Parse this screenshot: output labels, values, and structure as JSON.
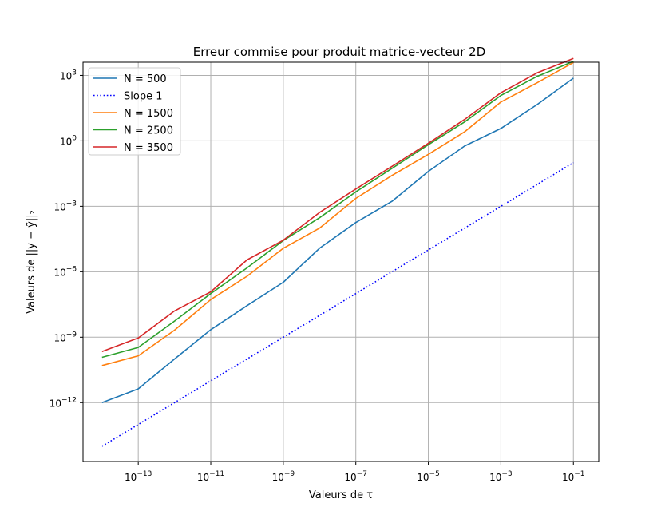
{
  "chart_data": {
    "type": "line",
    "title": "Erreur commise pour produit matrice-vecteur 2D",
    "xlabel": "Valeurs de τ",
    "ylabel": "Valeurs de ||y − ỹ||₂",
    "xscale": "log",
    "yscale": "log",
    "xlim": [
      3e-15,
      0.5
    ],
    "ylim": [
      2e-15,
      4000
    ],
    "grid": true,
    "legend_position": "top-left",
    "x_ticks": [
      {
        "base": "10",
        "exp": "−13"
      },
      {
        "base": "10",
        "exp": "−11"
      },
      {
        "base": "10",
        "exp": "−9"
      },
      {
        "base": "10",
        "exp": "−7"
      },
      {
        "base": "10",
        "exp": "−5"
      },
      {
        "base": "10",
        "exp": "−3"
      },
      {
        "base": "10",
        "exp": "−1"
      }
    ],
    "y_ticks": [
      {
        "base": "10",
        "exp": "3"
      },
      {
        "base": "10",
        "exp": "0"
      },
      {
        "base": "10",
        "exp": "−3"
      },
      {
        "base": "10",
        "exp": "−6"
      },
      {
        "base": "10",
        "exp": "−9"
      },
      {
        "base": "10",
        "exp": "−12"
      }
    ],
    "x": [
      1e-14,
      1e-13,
      1e-12,
      1e-11,
      1e-10,
      1e-09,
      1e-08,
      1e-07,
      1e-06,
      1e-05,
      0.0001,
      0.001,
      0.01,
      0.1
    ],
    "series": [
      {
        "name": "N = 500",
        "color": "#1f77b4",
        "style": "solid",
        "values": [
          1e-12,
          4.3e-12,
          1e-10,
          2.2e-09,
          2.8e-08,
          3.3e-07,
          1.2e-05,
          0.00018,
          0.0017,
          0.04,
          0.58,
          3.7,
          46.0,
          750.0
        ]
      },
      {
        "name": "Slope 1",
        "color": "#0000ff",
        "style": "dotted",
        "values": [
          1e-14,
          1e-13,
          1e-12,
          1e-11,
          1e-10,
          1e-09,
          1e-08,
          1e-07,
          1e-06,
          1e-05,
          0.0001,
          0.001,
          0.01,
          0.1
        ]
      },
      {
        "name": "N = 1500",
        "color": "#ff7f0e",
        "style": "solid",
        "values": [
          5e-11,
          1.4e-10,
          2.1e-09,
          5.3e-08,
          6.2e-07,
          1.2e-05,
          0.0001,
          0.0023,
          0.026,
          0.24,
          2.6,
          60.0,
          460.0,
          3900.0
        ]
      },
      {
        "name": "N = 2500",
        "color": "#2ca02c",
        "style": "solid",
        "values": [
          1.2e-10,
          3.4e-10,
          5.5e-09,
          1e-07,
          1.5e-06,
          2.7e-05,
          0.0003,
          0.0046,
          0.055,
          0.67,
          7.4,
          120.0,
          900.0,
          4400.0
        ]
      },
      {
        "name": "N = 3500",
        "color": "#d62728",
        "style": "solid",
        "values": [
          2.2e-10,
          9.2e-10,
          1.6e-08,
          1.2e-07,
          3.5e-06,
          2.8e-05,
          0.00052,
          0.0062,
          0.068,
          0.78,
          9.6,
          160.0,
          1300.0,
          6000.0
        ]
      }
    ]
  }
}
